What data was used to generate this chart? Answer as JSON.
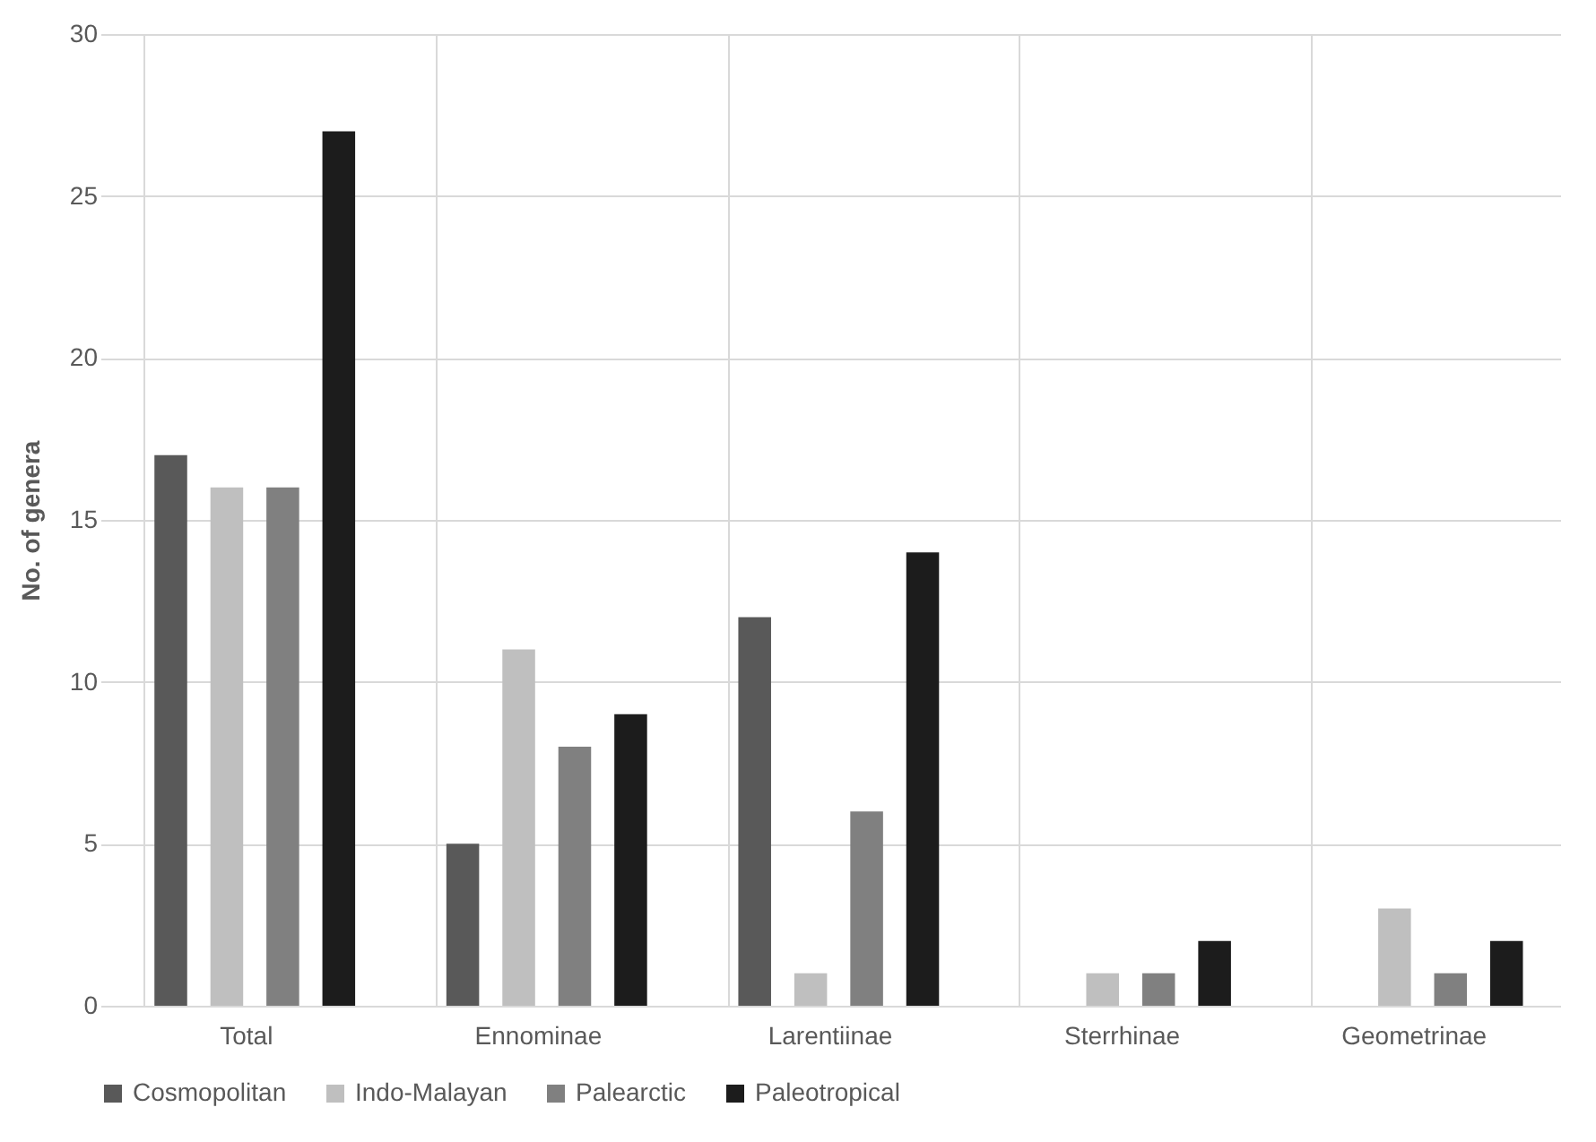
{
  "chart_data": {
    "type": "bar",
    "ylabel": "No. of genera",
    "categories": [
      "Total",
      "Ennominae",
      "Larentiinae",
      "Sterrhinae",
      "Geometrinae"
    ],
    "series": [
      {
        "name": "Cosmopolitan",
        "color": "#595959",
        "values": [
          17,
          5,
          12,
          0,
          0
        ]
      },
      {
        "name": "Indo-Malayan",
        "color": "#bfbfbf",
        "values": [
          16,
          11,
          1,
          1,
          3
        ]
      },
      {
        "name": "Palearctic",
        "color": "#808080",
        "values": [
          16,
          8,
          6,
          1,
          1
        ]
      },
      {
        "name": "Paleotropical",
        "color": "#1c1c1c",
        "values": [
          27,
          9,
          14,
          2,
          2
        ]
      }
    ],
    "ylim": [
      0,
      30
    ],
    "yticks": [
      0,
      5,
      10,
      15,
      20,
      25,
      30
    ],
    "grid": true,
    "legend": "bottom"
  }
}
